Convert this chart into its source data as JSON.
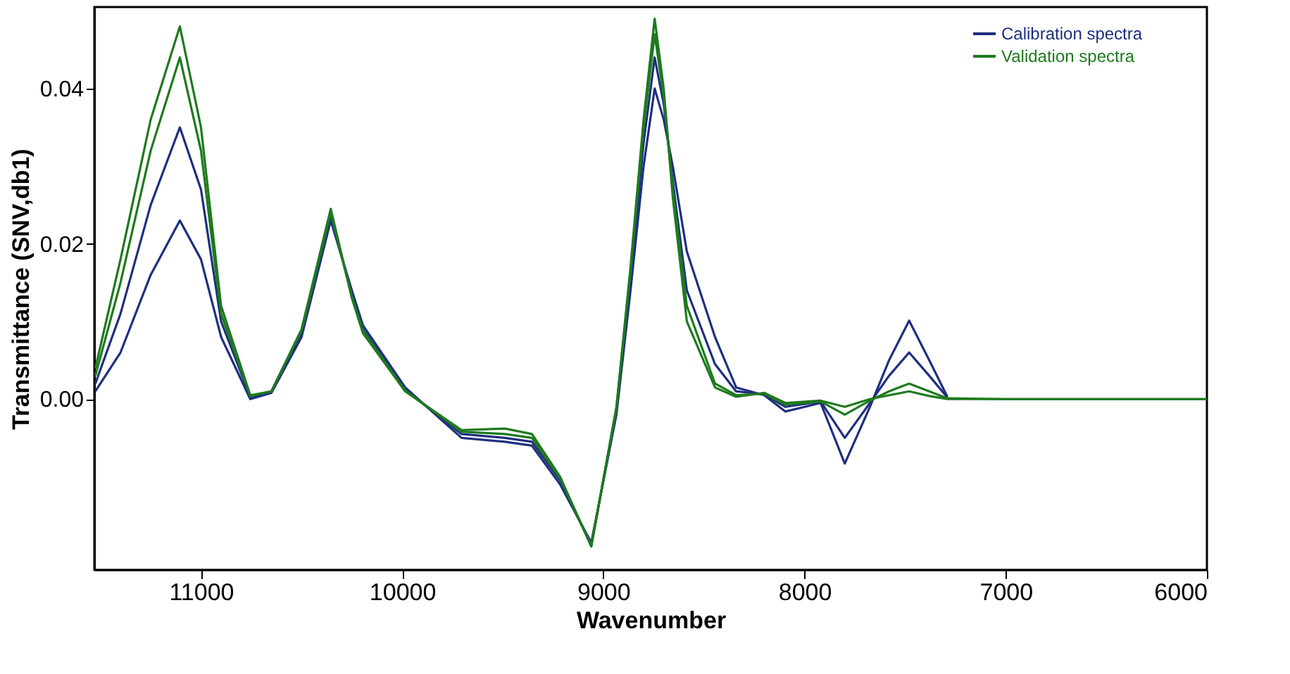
{
  "chart_data": {
    "type": "line",
    "xlabel": "Wavenumber",
    "ylabel": "Transmittance (SNV,db1)",
    "x": [
      11525,
      11400,
      11250,
      11105,
      11000,
      10900,
      10755,
      10650,
      10500,
      10355,
      10250,
      10195,
      9985,
      9705,
      9490,
      9355,
      9215,
      9060,
      8935,
      8865,
      8800,
      8745,
      8700,
      8655,
      8585,
      8445,
      8340,
      8200,
      8095,
      7920,
      7800,
      7675,
      7580,
      7480,
      7380,
      7290,
      7000,
      6000
    ],
    "series": [
      {
        "name": "Calibration spectra",
        "color": "#1f2f7f",
        "values": [
          0.001,
          0.006,
          0.016,
          0.023,
          0.018,
          0.008,
          0.0,
          0.0008,
          0.008,
          0.023,
          0.014,
          0.0095,
          0.0015,
          -0.005,
          -0.0055,
          -0.006,
          -0.011,
          -0.0185,
          -0.002,
          0.014,
          0.03,
          0.04,
          0.036,
          0.03,
          0.019,
          0.008,
          0.0015,
          0.0005,
          -0.0016,
          -0.0005,
          -0.0083,
          -0.001,
          0.005,
          0.0101,
          0.005,
          0.0003,
          null,
          null
        ]
      },
      {
        "color": "#1f2f7f",
        "values": [
          0.002,
          0.011,
          0.025,
          0.035,
          0.027,
          0.01,
          0.0003,
          0.0009,
          0.0085,
          0.0235,
          0.0135,
          0.009,
          0.0012,
          -0.0045,
          -0.005,
          -0.0055,
          -0.0105,
          -0.0188,
          -0.0015,
          0.0155,
          0.033,
          0.044,
          0.038,
          0.028,
          0.014,
          0.0045,
          0.001,
          0.0006,
          -0.001,
          -0.0003,
          -0.005,
          -0.0005,
          0.003,
          0.006,
          0.003,
          0.0002,
          null,
          null
        ]
      },
      {
        "name": "Validation spectra",
        "color": "#1e7a1e",
        "values": [
          0.004,
          0.018,
          0.036,
          0.048,
          0.035,
          0.012,
          0.0005,
          0.001,
          0.009,
          0.0245,
          0.013,
          0.0085,
          0.001,
          -0.004,
          -0.0038,
          -0.0045,
          -0.01,
          -0.019,
          -0.001,
          0.017,
          0.036,
          0.049,
          0.04,
          0.026,
          0.01,
          0.0015,
          0.0003,
          0.0008,
          -0.0005,
          -0.0002,
          -0.001,
          0.0,
          0.0005,
          0.001,
          0.0004,
          0.0,
          0.0,
          0.0
        ]
      },
      {
        "color": "#1e7a1e",
        "values": [
          0.003,
          0.015,
          0.032,
          0.044,
          0.032,
          0.011,
          0.0004,
          0.001,
          0.0088,
          0.024,
          0.0132,
          0.0088,
          0.0011,
          -0.0042,
          -0.0045,
          -0.005,
          -0.0102,
          -0.0189,
          -0.0012,
          0.0165,
          0.035,
          0.047,
          0.039,
          0.027,
          0.012,
          0.002,
          0.0005,
          0.0007,
          -0.0007,
          -0.0003,
          -0.002,
          -0.0002,
          0.001,
          0.002,
          0.001,
          0.0001,
          0.0,
          0.0
        ]
      }
    ],
    "xlim": [
      11530,
      6000
    ],
    "xticks": [
      11000,
      10000,
      9000,
      8000,
      7000,
      6000
    ],
    "ylim": [
      -0.022,
      0.0505
    ],
    "yticks": [
      {
        "value": 0,
        "label": "0.00"
      },
      {
        "value": 0.02,
        "label": "0.02"
      },
      {
        "value": 0.04,
        "label": "0.04"
      }
    ],
    "grid": false,
    "legend": "top right"
  }
}
